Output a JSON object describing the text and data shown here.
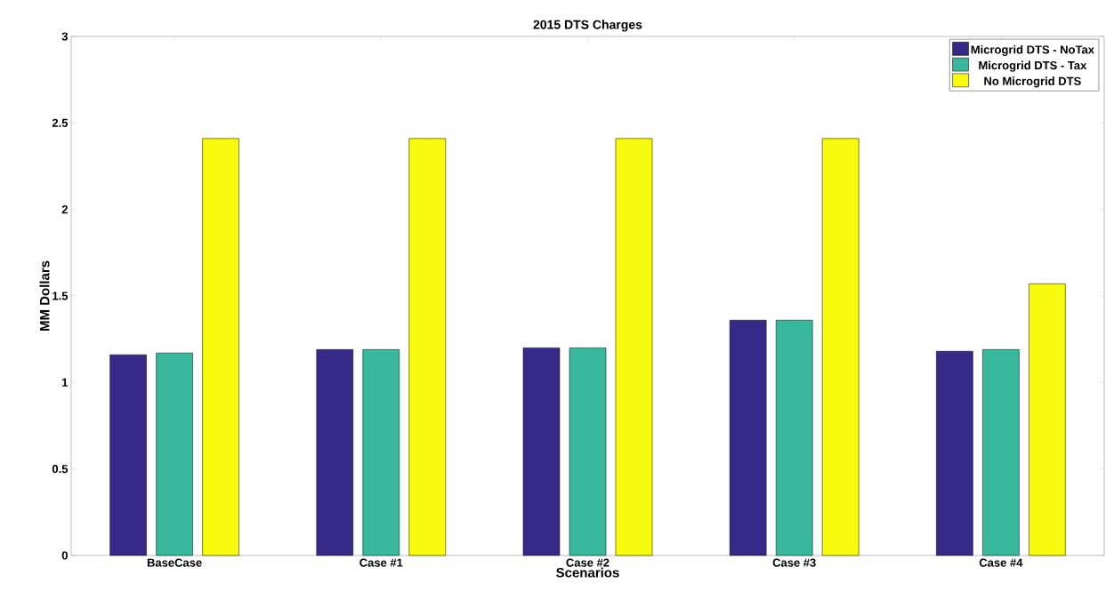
{
  "chart_data": {
    "type": "bar",
    "title": "2015 DTS Charges",
    "xlabel": "Scenarios",
    "ylabel": "MM Dollars",
    "categories": [
      "BaseCase",
      "Case #1",
      "Case #2",
      "Case #3",
      "Case #4"
    ],
    "series": [
      {
        "name": "Microgrid DTS - NoTax",
        "color": "#352a87",
        "values": [
          1.16,
          1.19,
          1.2,
          1.36,
          1.18
        ]
      },
      {
        "name": "Microgrid DTS - Tax",
        "color": "#38b99e",
        "values": [
          1.17,
          1.19,
          1.2,
          1.36,
          1.19
        ]
      },
      {
        "name": "No Microgrid DTS",
        "color": "#f9fb0e",
        "values": [
          2.41,
          2.41,
          2.41,
          2.41,
          1.57
        ]
      }
    ],
    "ylim": [
      0,
      3
    ],
    "yticks": [
      0,
      0.5,
      1,
      1.5,
      2,
      2.5,
      3
    ],
    "legend": "top right"
  }
}
